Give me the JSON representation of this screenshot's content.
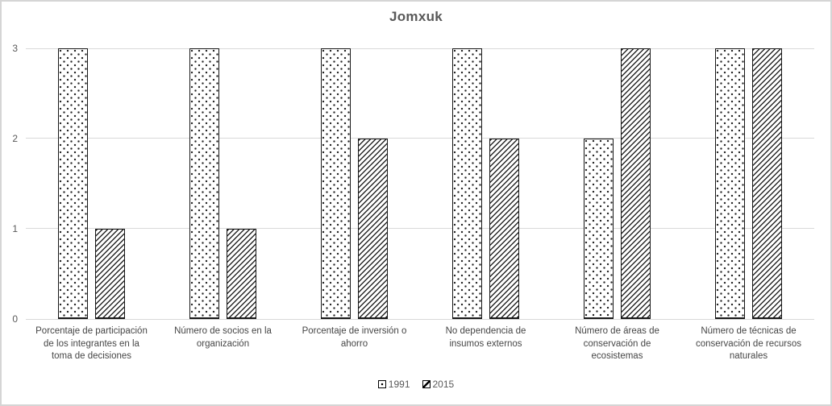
{
  "chart_data": {
    "type": "bar",
    "title": "Jomxuk",
    "categories": [
      "Porcentaje de participación\nde los integrantes en la\ntoma de decisiones",
      "Número de socios en la\norganización",
      "Porcentaje de inversión o\nahorro",
      "No dependencia de\ninsumos externos",
      "Número de áreas de\nconservación de\necosistemas",
      "Número de técnicas de\nconservación de recursos\nnaturales"
    ],
    "series": [
      {
        "name": "1991",
        "pattern": "dots",
        "values": [
          3,
          3,
          3,
          3,
          2,
          3
        ]
      },
      {
        "name": "2015",
        "pattern": "diagonal-stripes",
        "values": [
          1,
          1,
          2,
          2,
          3,
          3
        ]
      }
    ],
    "xlabel": "",
    "ylabel": "",
    "ylim": [
      0,
      3
    ],
    "yticks": [
      0,
      1,
      2,
      3
    ],
    "grid": true,
    "legend_position": "bottom"
  },
  "colors": {
    "title": "#595959",
    "axis_labels": "#595959",
    "category_labels": "#464646",
    "gridline": "#d9d9d9",
    "bar_outline": "#171717",
    "pattern_ink": "#262626",
    "frame_border": "#d5d5d5",
    "background": "#ffffff"
  }
}
